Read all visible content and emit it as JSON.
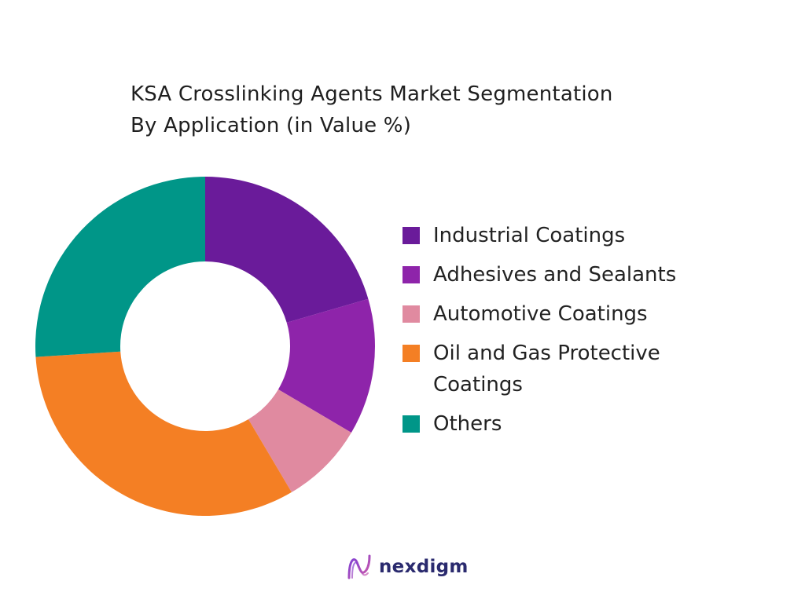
{
  "chart_data": {
    "type": "pie",
    "title_line1": "KSA Crosslinking Agents Market Segmentation",
    "title_line2": "By Application (in Value %)",
    "donut": true,
    "legend_position": "right",
    "categories": [
      "Industrial Coatings",
      "Adhesives and Sealants",
      "Automotive Coatings",
      "Oil and Gas Protective Coatings",
      "Others"
    ],
    "values": [
      20.5,
      13.0,
      8.0,
      32.5,
      26.0
    ],
    "unit": "%",
    "colors": [
      "#6a1b9a",
      "#8e24aa",
      "#e08aa0",
      "#f47f24",
      "#009688"
    ]
  },
  "brand": {
    "name": "nexdigm",
    "icon": "nexdigm-logo-icon"
  }
}
